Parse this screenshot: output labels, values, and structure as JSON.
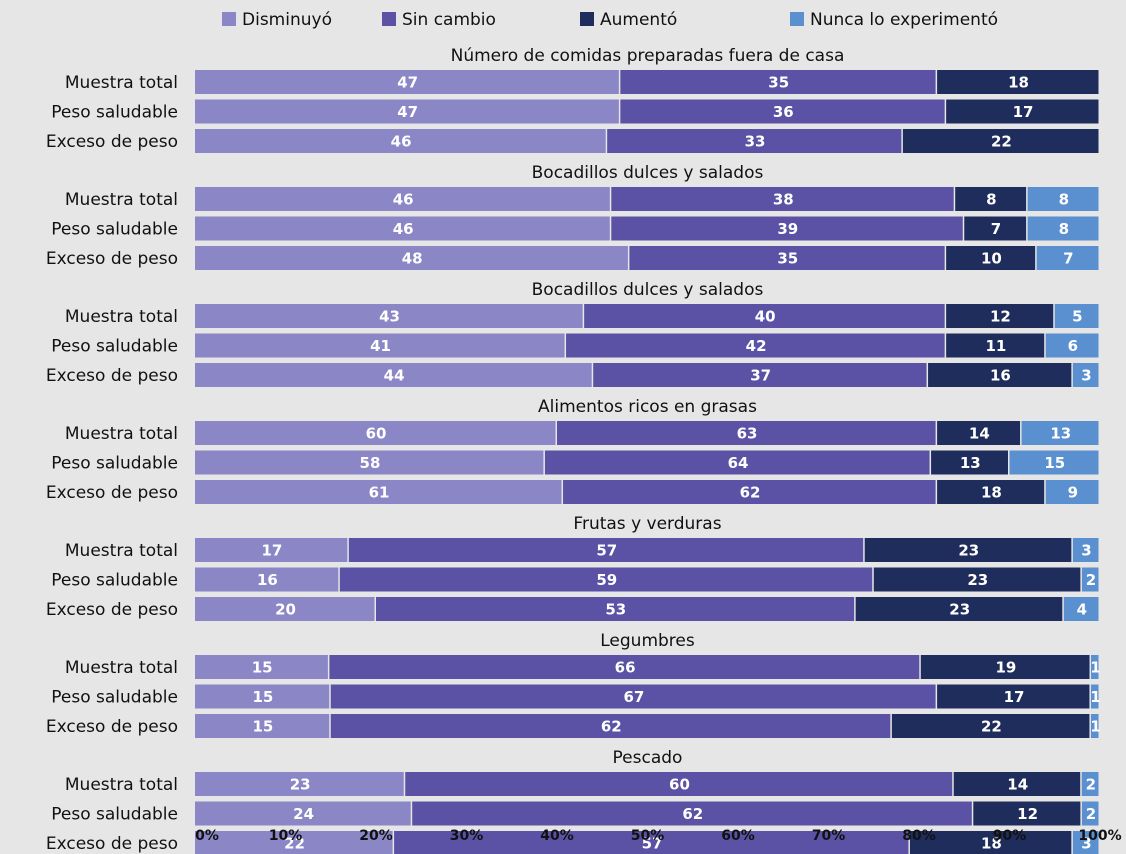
{
  "chart_data": {
    "type": "bar",
    "orientation": "horizontal",
    "stacked": true,
    "title": "",
    "xlabel": "",
    "ylabel": "",
    "xlim": [
      0,
      100
    ],
    "x_ticks": [
      "0%",
      "10%",
      "20%",
      "30%",
      "40%",
      "50%",
      "60%",
      "70%",
      "80%",
      "90%",
      "100%"
    ],
    "grid": false,
    "legend_position": "top",
    "series": [
      {
        "name": "Disminuyó",
        "color": "#8b86c6"
      },
      {
        "name": "Sin cambio",
        "color": "#5b52a6"
      },
      {
        "name": "Aumentó",
        "color": "#1f2d5c"
      },
      {
        "name": "Nunca lo experimentó",
        "color": "#5a8fd0"
      }
    ],
    "groups": [
      {
        "title": "Número de comidas preparadas fuera de casa",
        "rows": [
          {
            "label": "Muestra total",
            "values": [
              47,
              35,
              18,
              null
            ]
          },
          {
            "label": "Peso saludable",
            "values": [
              47,
              36,
              17,
              null
            ]
          },
          {
            "label": "Exceso de peso",
            "values": [
              46,
              33,
              22,
              null
            ]
          }
        ]
      },
      {
        "title": "Bocadillos dulces y salados",
        "rows": [
          {
            "label": "Muestra total",
            "values": [
              46,
              38,
              8,
              8
            ]
          },
          {
            "label": "Peso saludable",
            "values": [
              46,
              39,
              7,
              8
            ]
          },
          {
            "label": "Exceso de peso",
            "values": [
              48,
              35,
              10,
              7
            ]
          }
        ]
      },
      {
        "title": "Bocadillos dulces y salados",
        "rows": [
          {
            "label": "Muestra total",
            "values": [
              43,
              40,
              12,
              5
            ]
          },
          {
            "label": "Peso saludable",
            "values": [
              41,
              42,
              11,
              6
            ]
          },
          {
            "label": "Exceso de peso",
            "values": [
              44,
              37,
              16,
              3
            ]
          }
        ]
      },
      {
        "title": "Alimentos ricos en grasas",
        "rows": [
          {
            "label": "Muestra total",
            "values": [
              60,
              63,
              14,
              13
            ]
          },
          {
            "label": "Peso saludable",
            "values": [
              58,
              64,
              13,
              15
            ]
          },
          {
            "label": "Exceso de peso",
            "values": [
              61,
              62,
              18,
              9
            ]
          }
        ]
      },
      {
        "title": "Frutas y verduras",
        "rows": [
          {
            "label": "Muestra total",
            "values": [
              17,
              57,
              23,
              3
            ]
          },
          {
            "label": "Peso saludable",
            "values": [
              16,
              59,
              23,
              2
            ]
          },
          {
            "label": "Exceso de peso",
            "values": [
              20,
              53,
              23,
              4
            ]
          }
        ]
      },
      {
        "title": "Legumbres",
        "rows": [
          {
            "label": "Muestra total",
            "values": [
              15,
              66,
              19,
              1
            ]
          },
          {
            "label": "Peso saludable",
            "values": [
              15,
              67,
              17,
              1
            ]
          },
          {
            "label": "Exceso de peso",
            "values": [
              15,
              62,
              22,
              1
            ]
          }
        ]
      },
      {
        "title": "Pescado",
        "rows": [
          {
            "label": "Muestra total",
            "values": [
              23,
              60,
              14,
              2
            ]
          },
          {
            "label": "Peso saludable",
            "values": [
              24,
              62,
              12,
              2
            ]
          },
          {
            "label": "Exceso de peso",
            "values": [
              22,
              57,
              18,
              3
            ]
          }
        ]
      }
    ]
  }
}
